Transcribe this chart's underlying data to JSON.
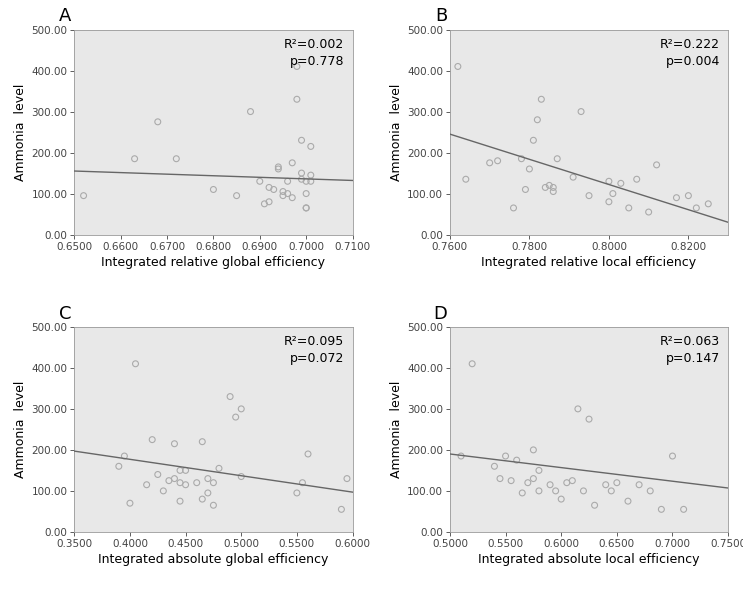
{
  "panels": [
    {
      "label": "A",
      "xlabel": "Integrated relative global efficiency",
      "r2": "0.002",
      "p": "0.778",
      "xlim": [
        0.65,
        0.71
      ],
      "xticks": [
        0.65,
        0.66,
        0.67,
        0.68,
        0.69,
        0.7,
        0.71
      ],
      "xtick_labels": [
        "0.6500",
        "0.6600",
        "0.6700",
        "0.6800",
        "0.6900",
        "0.7000",
        "0.7100"
      ],
      "x_data": [
        0.652,
        0.663,
        0.668,
        0.672,
        0.68,
        0.685,
        0.688,
        0.69,
        0.691,
        0.692,
        0.692,
        0.693,
        0.694,
        0.694,
        0.695,
        0.695,
        0.696,
        0.696,
        0.697,
        0.697,
        0.698,
        0.698,
        0.699,
        0.699,
        0.699,
        0.7,
        0.7,
        0.7,
        0.7,
        0.701,
        0.701,
        0.701
      ],
      "y_data": [
        95,
        185,
        275,
        185,
        110,
        95,
        300,
        130,
        75,
        80,
        115,
        110,
        160,
        165,
        95,
        105,
        100,
        130,
        90,
        175,
        410,
        330,
        150,
        135,
        230,
        100,
        130,
        65,
        65,
        215,
        145,
        130
      ],
      "line_x": [
        0.65,
        0.71
      ],
      "line_y": [
        155,
        132
      ]
    },
    {
      "label": "B",
      "xlabel": "Integrated relative local efficiency",
      "r2": "0.222",
      "p": "0.004",
      "xlim": [
        0.76,
        0.83
      ],
      "xticks": [
        0.76,
        0.78,
        0.8,
        0.82
      ],
      "xtick_labels": [
        "0.7600",
        "0.7800",
        "0.8000",
        "0.8200"
      ],
      "x_data": [
        0.762,
        0.764,
        0.77,
        0.772,
        0.776,
        0.778,
        0.779,
        0.78,
        0.781,
        0.782,
        0.783,
        0.784,
        0.785,
        0.786,
        0.786,
        0.787,
        0.791,
        0.793,
        0.795,
        0.8,
        0.8,
        0.801,
        0.803,
        0.805,
        0.807,
        0.81,
        0.812,
        0.817,
        0.82,
        0.822,
        0.825
      ],
      "y_data": [
        410,
        135,
        175,
        180,
        65,
        185,
        110,
        160,
        230,
        280,
        330,
        115,
        120,
        105,
        115,
        185,
        140,
        300,
        95,
        80,
        130,
        100,
        125,
        65,
        135,
        55,
        170,
        90,
        95,
        65,
        75
      ],
      "line_x": [
        0.76,
        0.83
      ],
      "line_y": [
        245,
        30
      ]
    },
    {
      "label": "C",
      "xlabel": "Integrated absolute global efficiency",
      "r2": "0.095",
      "p": "0.072",
      "xlim": [
        0.35,
        0.6
      ],
      "xticks": [
        0.35,
        0.4,
        0.45,
        0.5,
        0.55,
        0.6
      ],
      "xtick_labels": [
        "0.3500",
        "0.4000",
        "0.4500",
        "0.5000",
        "0.5500",
        "0.6000"
      ],
      "x_data": [
        0.39,
        0.395,
        0.4,
        0.405,
        0.415,
        0.42,
        0.425,
        0.43,
        0.435,
        0.44,
        0.44,
        0.445,
        0.445,
        0.445,
        0.45,
        0.45,
        0.46,
        0.465,
        0.465,
        0.47,
        0.47,
        0.475,
        0.475,
        0.48,
        0.49,
        0.495,
        0.5,
        0.5,
        0.55,
        0.555,
        0.56,
        0.59,
        0.595
      ],
      "y_data": [
        160,
        185,
        70,
        410,
        115,
        225,
        140,
        100,
        125,
        130,
        215,
        75,
        120,
        150,
        115,
        150,
        120,
        80,
        220,
        130,
        95,
        65,
        120,
        155,
        330,
        280,
        300,
        135,
        95,
        120,
        190,
        55,
        130
      ],
      "line_x": [
        0.35,
        0.6
      ],
      "line_y": [
        197,
        97
      ]
    },
    {
      "label": "D",
      "xlabel": "Integrated absolute local efficiency",
      "r2": "0.063",
      "p": "0.147",
      "xlim": [
        0.5,
        0.75
      ],
      "xticks": [
        0.5,
        0.55,
        0.6,
        0.65,
        0.7,
        0.75
      ],
      "xtick_labels": [
        "0.5000",
        "0.5500",
        "0.6000",
        "0.6500",
        "0.7000",
        "0.7500"
      ],
      "x_data": [
        0.51,
        0.52,
        0.54,
        0.545,
        0.55,
        0.555,
        0.56,
        0.565,
        0.57,
        0.575,
        0.575,
        0.58,
        0.58,
        0.59,
        0.595,
        0.6,
        0.605,
        0.61,
        0.615,
        0.62,
        0.625,
        0.63,
        0.64,
        0.645,
        0.65,
        0.66,
        0.67,
        0.68,
        0.69,
        0.7,
        0.71
      ],
      "y_data": [
        185,
        410,
        160,
        130,
        185,
        125,
        175,
        95,
        120,
        130,
        200,
        100,
        150,
        115,
        100,
        80,
        120,
        125,
        300,
        100,
        275,
        65,
        115,
        100,
        120,
        75,
        115,
        100,
        55,
        185,
        55
      ],
      "line_x": [
        0.5,
        0.75
      ],
      "line_y": [
        190,
        107
      ]
    }
  ],
  "ylim": [
    0.0,
    500.0
  ],
  "yticks": [
    0.0,
    100.0,
    200.0,
    300.0,
    400.0,
    500.0
  ],
  "ytick_labels": [
    "0.00",
    "100.00",
    "200.00",
    "300.00",
    "400.00",
    "500.00"
  ],
  "ylabel": "Ammonia  level",
  "fig_bg_color": "#ffffff",
  "plot_bg_color": "#e8e8e8",
  "marker_color": "#aaaaaa",
  "line_color": "#666666",
  "label_fontsize": 9,
  "tick_fontsize": 7.5,
  "annotation_fontsize": 9,
  "panel_label_fontsize": 13
}
